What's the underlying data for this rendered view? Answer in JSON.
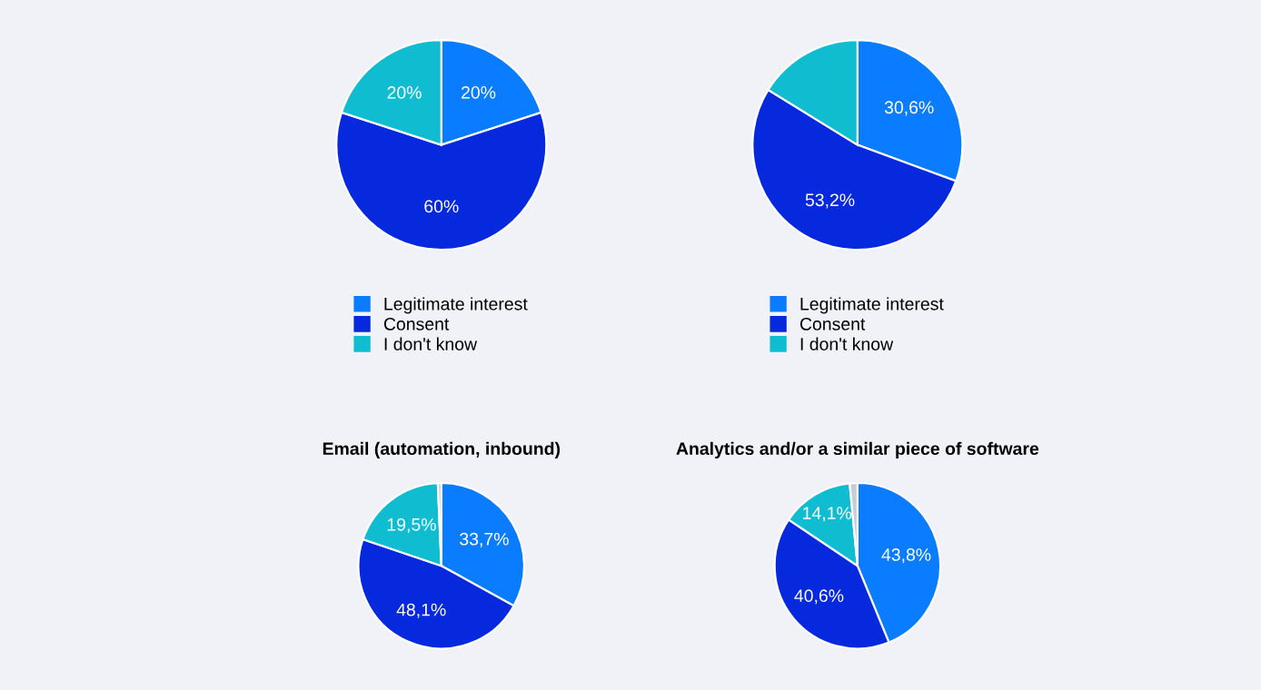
{
  "chart_data": [
    {
      "type": "pie",
      "categories": [
        "Legitimate interest",
        "Consent",
        "I don't know"
      ],
      "values": [
        20,
        60,
        20
      ],
      "colors": [
        "#0a7cff",
        "#0729dd",
        "#10bcd0"
      ],
      "value_labels": [
        "20%",
        "60%",
        "20%"
      ],
      "legend": "bottom"
    },
    {
      "type": "pie",
      "categories": [
        "Legitimate interest",
        "Consent",
        "I don't know"
      ],
      "values": [
        30.6,
        53.2,
        16.2
      ],
      "colors": [
        "#0a7cff",
        "#0729dd",
        "#10bcd0"
      ],
      "value_labels": [
        "30,6%",
        "53,2%",
        null
      ],
      "legend": "bottom"
    },
    {
      "type": "pie",
      "title": "Email (automation, inbound)",
      "categories": [
        null,
        null,
        null,
        null
      ],
      "values": [
        33.7,
        48.1,
        19.5,
        0.7
      ],
      "colors": [
        "#0a7cff",
        "#0729dd",
        "#10bcd0",
        "#c8ccd4"
      ],
      "value_labels": [
        "33,7%",
        "48,1%",
        "19,5%",
        null
      ]
    },
    {
      "type": "pie",
      "title": "Analytics and/or a similar piece of software",
      "categories": [
        null,
        null,
        null,
        null
      ],
      "values": [
        43.8,
        40.6,
        14.1,
        1.5
      ],
      "colors": [
        "#0a7cff",
        "#0729dd",
        "#10bcd0",
        "#c8ccd4"
      ],
      "value_labels": [
        "43,8%",
        "40,6%",
        "14,1%",
        null
      ]
    }
  ]
}
